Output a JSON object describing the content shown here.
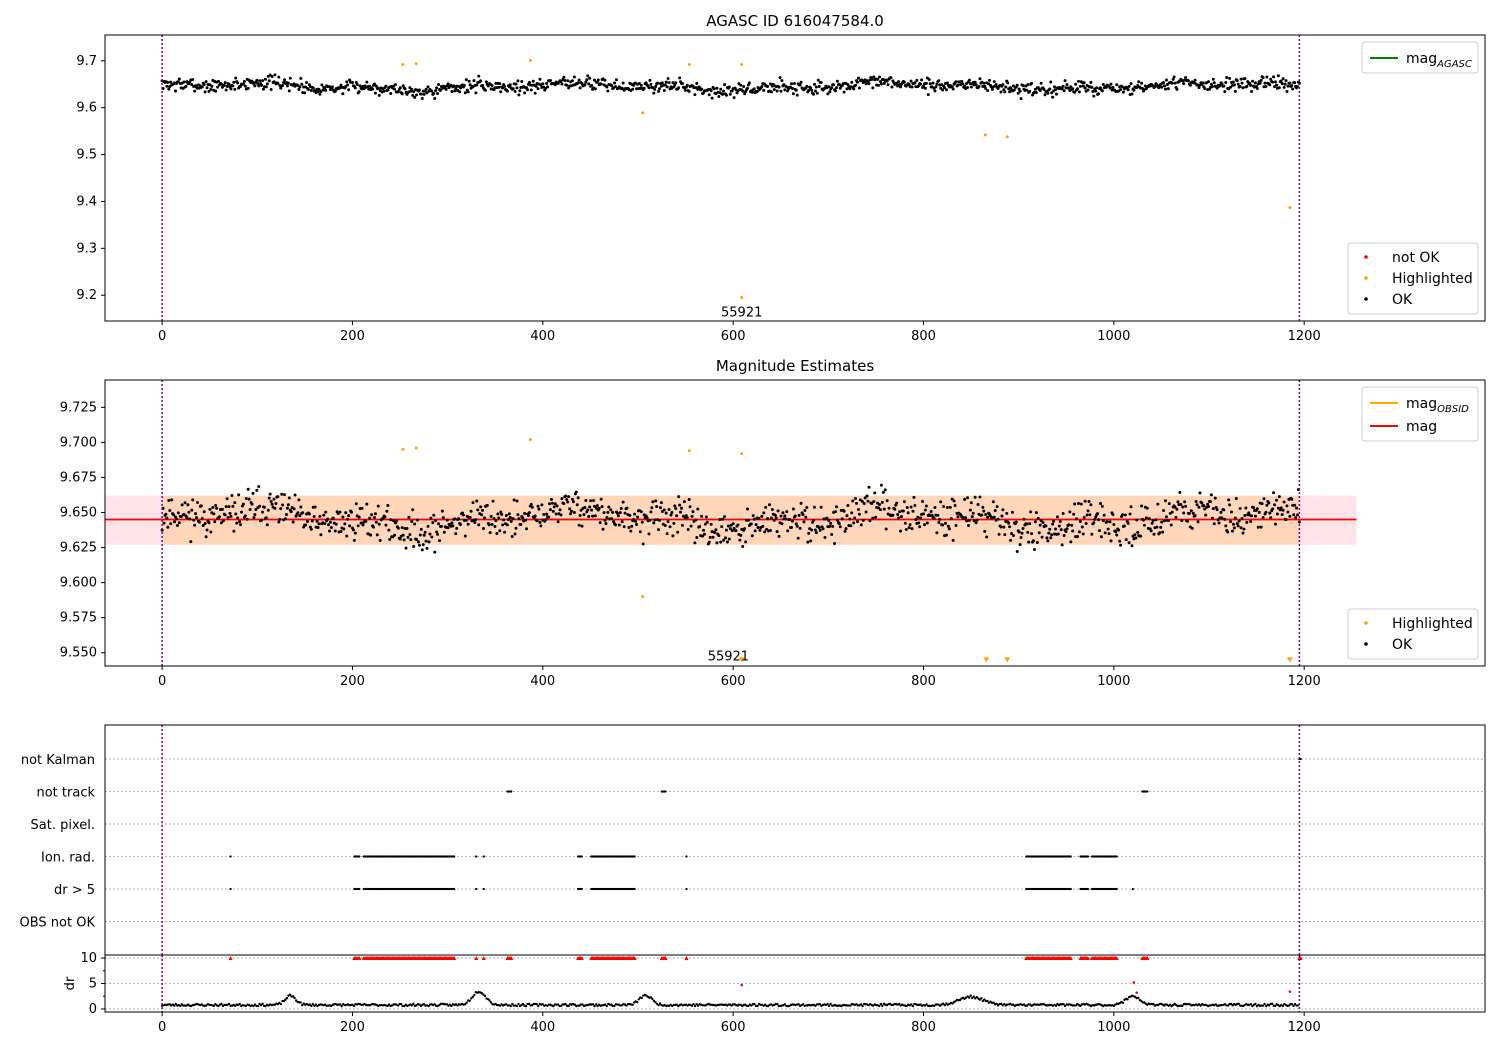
{
  "chart_data": [
    {
      "type": "scatter",
      "title": "AGASC ID 616047584.0",
      "xlim": [
        -60,
        1390
      ],
      "ylim": [
        9.145,
        9.755
      ],
      "xticks": [
        0,
        200,
        400,
        600,
        800,
        1000,
        1200
      ],
      "yticks": [
        9.2,
        9.3,
        9.4,
        9.5,
        9.6,
        9.7
      ],
      "ytick_labels": [
        "9.2",
        "9.3",
        "9.4",
        "9.5",
        "9.6",
        "9.7"
      ],
      "vlines": [
        0,
        1195
      ],
      "annotation": {
        "text": "55921",
        "x": 609,
        "y": 9.165
      },
      "line_legend": {
        "placement": "upper right",
        "entries": [
          {
            "label": "mag",
            "sub": "AGASC",
            "color": "#008000"
          }
        ]
      },
      "marker_legend": {
        "placement": "lower right",
        "entries": [
          {
            "label": "not OK",
            "color": "#ff0000"
          },
          {
            "label": "Highlighted",
            "color": "#ffa500"
          },
          {
            "label": "OK",
            "color": "#000000"
          }
        ]
      },
      "series": [
        {
          "name": "OK",
          "color": "#000000",
          "band": {
            "n": 1190,
            "x_start": 0,
            "x_end": 1195,
            "mean": 9.645,
            "spread": 0.022,
            "seed": 7
          }
        },
        {
          "name": "Highlighted",
          "color": "#ffa500",
          "points": [
            [
              253,
              9.692
            ],
            [
              267,
              9.694
            ],
            [
              387,
              9.701
            ],
            [
              505,
              9.589
            ],
            [
              554,
              9.692
            ],
            [
              609,
              9.692
            ],
            [
              609,
              9.195
            ],
            [
              865,
              9.542
            ],
            [
              888,
              9.538
            ],
            [
              1185,
              9.387
            ]
          ]
        }
      ]
    },
    {
      "type": "scatter",
      "title": "Magnitude Estimates",
      "xlim": [
        -60,
        1390
      ],
      "ylim": [
        9.5405,
        9.7445
      ],
      "xticks": [
        0,
        200,
        400,
        600,
        800,
        1000,
        1200
      ],
      "yticks": [
        9.55,
        9.575,
        9.6,
        9.625,
        9.65,
        9.675,
        9.7,
        9.725
      ],
      "ytick_labels": [
        "9.550",
        "9.575",
        "9.600",
        "9.625",
        "9.650",
        "9.675",
        "9.700",
        "9.725"
      ],
      "vlines": [
        0,
        1195
      ],
      "annotation": {
        "text": "55921",
        "x": 595,
        "y": 9.548
      },
      "hline": {
        "y": 9.645,
        "x_start": -60,
        "x_end": 1255,
        "color": "#ff0000"
      },
      "bands": [
        {
          "x_start": -60,
          "x_end": 1255,
          "y_low": 9.627,
          "y_high": 9.662,
          "color": "#ffc0cb",
          "opacity": 0.45
        },
        {
          "x_start": 0,
          "x_end": 1195,
          "y_low": 9.627,
          "y_high": 9.662,
          "color": "#ffa500",
          "opacity": 0.2
        }
      ],
      "line_legend": {
        "placement": "upper right",
        "entries": [
          {
            "label": "mag",
            "sub": "OBSID",
            "color": "#ffa500"
          },
          {
            "label": "mag",
            "sub": "",
            "color": "#ff0000"
          }
        ]
      },
      "marker_legend": {
        "placement": "lower right",
        "entries": [
          {
            "label": "Highlighted",
            "color": "#ffa500"
          },
          {
            "label": "OK",
            "color": "#000000"
          }
        ]
      },
      "series": [
        {
          "name": "OK",
          "color": "#000000",
          "band": {
            "n": 1190,
            "x_start": 0,
            "x_end": 1195,
            "mean": 9.645,
            "spread": 0.02,
            "seed": 11
          }
        },
        {
          "name": "Highlighted",
          "color": "#ffa500",
          "points": [
            [
              253,
              9.695
            ],
            [
              267,
              9.696
            ],
            [
              387,
              9.702
            ],
            [
              505,
              9.59
            ],
            [
              554,
              9.694
            ],
            [
              609,
              9.692
            ]
          ]
        },
        {
          "name": "out of range",
          "color": "#ffa500",
          "marker": "triangle-down",
          "points": [
            [
              609,
              9.5445
            ],
            [
              866,
              9.5445
            ],
            [
              888,
              9.5445
            ],
            [
              1185,
              9.5445
            ]
          ]
        }
      ]
    },
    {
      "type": "scatter",
      "title": "",
      "xlim": [
        -60,
        1390
      ],
      "vlines": [
        0,
        1195
      ],
      "flag_categories": [
        "not Kalman",
        "not track",
        "Sat. pixel.",
        "Ion. rad.",
        "dr > 5",
        "OBS not OK"
      ],
      "flags": {
        "not Kalman": [
          [
            1195,
            1197
          ]
        ],
        "not track": [
          [
            363,
            368
          ],
          [
            525,
            530
          ],
          [
            1030,
            1036
          ]
        ],
        "Sat. pixel.": [],
        "Ion. rad.": [
          [
            72,
            73
          ],
          [
            202,
            208
          ],
          [
            212,
            308
          ],
          [
            330,
            331
          ],
          [
            338,
            339
          ],
          [
            437,
            442
          ],
          [
            451,
            497
          ],
          [
            551,
            552
          ],
          [
            908,
            956
          ],
          [
            965,
            973
          ],
          [
            977,
            1004
          ]
        ],
        "dr > 5": [
          [
            72,
            73
          ],
          [
            202,
            208
          ],
          [
            212,
            308
          ],
          [
            330,
            331
          ],
          [
            338,
            339
          ],
          [
            437,
            442
          ],
          [
            451,
            497
          ],
          [
            551,
            552
          ],
          [
            908,
            956
          ],
          [
            965,
            973
          ],
          [
            977,
            1004
          ],
          [
            1020,
            1021
          ]
        ],
        "OBS not OK": []
      },
      "dr_panel": {
        "ylabel": "dr",
        "ylim": [
          -0.6,
          10.6
        ],
        "yticks": [
          0,
          5,
          10
        ],
        "clip_level": 10,
        "clip_ranges": [
          [
            72,
            73
          ],
          [
            202,
            208
          ],
          [
            212,
            308
          ],
          [
            330,
            331
          ],
          [
            338,
            339
          ],
          [
            363,
            368
          ],
          [
            437,
            442
          ],
          [
            451,
            497
          ],
          [
            525,
            530
          ],
          [
            551,
            552
          ],
          [
            908,
            956
          ],
          [
            965,
            973
          ],
          [
            977,
            1004
          ],
          [
            1030,
            1036
          ],
          [
            1195,
            1197
          ]
        ],
        "red_points": [
          [
            609,
            4.7
          ],
          [
            1021,
            5.2
          ],
          [
            1024,
            3.2
          ],
          [
            1185,
            3.4
          ]
        ],
        "bumps": [
          [
            135,
            1.8,
            8
          ],
          [
            333,
            2.7,
            10
          ],
          [
            508,
            1.9,
            9
          ],
          [
            850,
            1.6,
            18
          ],
          [
            1020,
            1.8,
            10
          ]
        ]
      }
    }
  ]
}
